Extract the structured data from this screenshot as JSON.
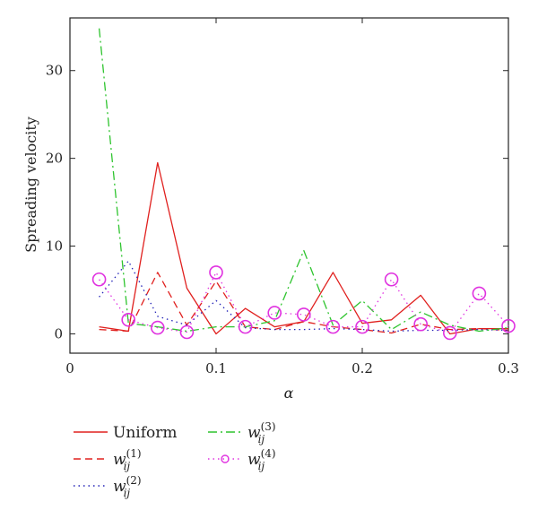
{
  "chart_data": {
    "type": "line",
    "ylabel": "Spreading velocity",
    "xlabel": "α",
    "xlim": [
      0,
      0.3
    ],
    "ylim": [
      -2.2,
      36
    ],
    "xticks": [
      0,
      0.1,
      0.2,
      0.3
    ],
    "xtick_labels": [
      "0",
      "0.1",
      "0.2",
      "0.3"
    ],
    "yticks": [
      0,
      10,
      20,
      30
    ],
    "ytick_labels": [
      "0",
      "10",
      "20",
      "30"
    ],
    "grid": false,
    "legend_position": "bottom-left",
    "x": [
      0.02,
      0.04,
      0.06,
      0.08,
      0.1,
      0.12,
      0.14,
      0.16,
      0.18,
      0.2,
      0.22,
      0.24,
      0.26,
      0.28,
      0.3
    ],
    "series": [
      {
        "name": "Uniform",
        "color": "#e0201e",
        "dash": "solid",
        "values": [
          0.8,
          0.3,
          19.5,
          5.2,
          0.0,
          2.9,
          0.8,
          1.4,
          7.0,
          1.2,
          1.6,
          4.4,
          0.0,
          0.6,
          0.6
        ]
      },
      {
        "name": "w_ij^(1)",
        "color": "#e0201e",
        "dash": "dashed",
        "values": [
          0.5,
          0.3,
          7.0,
          1.0,
          6.0,
          0.8,
          0.5,
          1.4,
          0.8,
          0.5,
          0.1,
          1.1,
          0.5,
          0.6,
          0.4
        ]
      },
      {
        "name": "w_ij^(2)",
        "color": "#2323b8",
        "dash": "dotted",
        "values": [
          4.2,
          8.3,
          2.0,
          1.0,
          3.8,
          0.7,
          0.5,
          0.5,
          0.6,
          0.5,
          0.3,
          0.4,
          0.4,
          0.5,
          0.4
        ]
      },
      {
        "name": "w_ij^(3)",
        "color": "#2ec42e",
        "dash": "dashdot",
        "values": [
          34.8,
          1.2,
          0.8,
          0.3,
          0.8,
          0.8,
          1.5,
          9.5,
          1.0,
          3.8,
          0.5,
          2.5,
          1.0,
          0.3,
          0.7
        ]
      },
      {
        "name": "w_ij^(4)",
        "color": "#e032e0",
        "dash": "dotted",
        "marker": "circle",
        "values": [
          6.2,
          1.6,
          0.7,
          0.2,
          7.0,
          0.8,
          2.4,
          2.2,
          0.8,
          0.8,
          6.2,
          1.1,
          0.1,
          4.6,
          0.9
        ]
      }
    ],
    "legend": [
      {
        "label": "Uniform",
        "sub": "",
        "sup": ""
      },
      {
        "label": "w",
        "sub": "ij",
        "sup": "(1)"
      },
      {
        "label": "w",
        "sub": "ij",
        "sup": "(2)"
      },
      {
        "label": "w",
        "sub": "ij",
        "sup": "(3)"
      },
      {
        "label": "w",
        "sub": "ij",
        "sup": "(4)"
      }
    ]
  }
}
